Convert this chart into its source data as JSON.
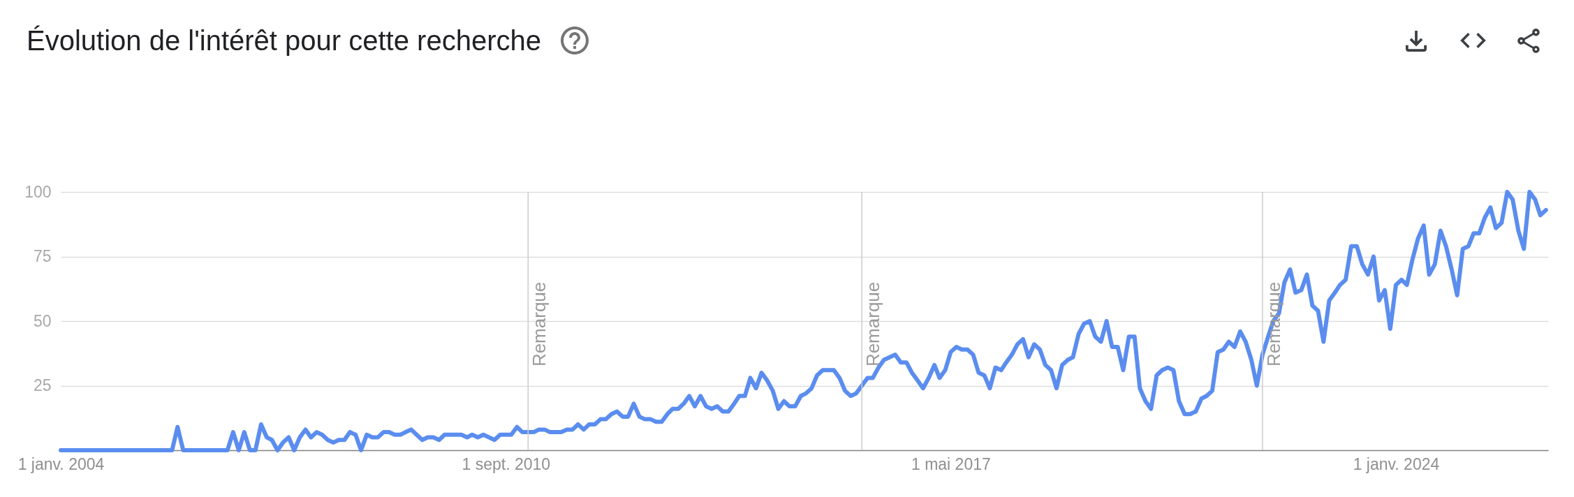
{
  "chart_data": {
    "type": "line",
    "title": "Évolution de l'intérêt pour cette recherche",
    "x": [
      "2004-01",
      "2004-02",
      "2004-03",
      "2004-04",
      "2004-05",
      "2004-06",
      "2004-07",
      "2004-08",
      "2004-09",
      "2004-10",
      "2004-11",
      "2004-12",
      "2005-01",
      "2005-02",
      "2005-03",
      "2005-04",
      "2005-05",
      "2005-06",
      "2005-07",
      "2005-08",
      "2005-09",
      "2005-10",
      "2005-11",
      "2005-12",
      "2006-01",
      "2006-02",
      "2006-03",
      "2006-04",
      "2006-05",
      "2006-06",
      "2006-07",
      "2006-08",
      "2006-09",
      "2006-10",
      "2006-11",
      "2006-12",
      "2007-01",
      "2007-02",
      "2007-03",
      "2007-04",
      "2007-05",
      "2007-06",
      "2007-07",
      "2007-08",
      "2007-09",
      "2007-10",
      "2007-11",
      "2007-12",
      "2008-01",
      "2008-02",
      "2008-03",
      "2008-04",
      "2008-05",
      "2008-06",
      "2008-07",
      "2008-08",
      "2008-09",
      "2008-10",
      "2008-11",
      "2008-12",
      "2009-01",
      "2009-02",
      "2009-03",
      "2009-04",
      "2009-05",
      "2009-06",
      "2009-07",
      "2009-08",
      "2009-09",
      "2009-10",
      "2009-11",
      "2009-12",
      "2010-01",
      "2010-02",
      "2010-03",
      "2010-04",
      "2010-05",
      "2010-06",
      "2010-07",
      "2010-08",
      "2010-09",
      "2010-10",
      "2010-11",
      "2010-12",
      "2011-01",
      "2011-02",
      "2011-03",
      "2011-04",
      "2011-05",
      "2011-06",
      "2011-07",
      "2011-08",
      "2011-09",
      "2011-10",
      "2011-11",
      "2011-12",
      "2012-01",
      "2012-02",
      "2012-03",
      "2012-04",
      "2012-05",
      "2012-06",
      "2012-07",
      "2012-08",
      "2012-09",
      "2012-10",
      "2012-11",
      "2012-12",
      "2013-01",
      "2013-02",
      "2013-03",
      "2013-04",
      "2013-05",
      "2013-06",
      "2013-07",
      "2013-08",
      "2013-09",
      "2013-10",
      "2013-11",
      "2013-12",
      "2014-01",
      "2014-02",
      "2014-03",
      "2014-04",
      "2014-05",
      "2014-06",
      "2014-07",
      "2014-08",
      "2014-09",
      "2014-10",
      "2014-11",
      "2014-12",
      "2015-01",
      "2015-02",
      "2015-03",
      "2015-04",
      "2015-05",
      "2015-06",
      "2015-07",
      "2015-08",
      "2015-09",
      "2015-10",
      "2015-11",
      "2015-12",
      "2016-01",
      "2016-02",
      "2016-03",
      "2016-04",
      "2016-05",
      "2016-06",
      "2016-07",
      "2016-08",
      "2016-09",
      "2016-10",
      "2016-11",
      "2016-12",
      "2017-01",
      "2017-02",
      "2017-03",
      "2017-04",
      "2017-05",
      "2017-06",
      "2017-07",
      "2017-08",
      "2017-09",
      "2017-10",
      "2017-11",
      "2017-12",
      "2018-01",
      "2018-02",
      "2018-03",
      "2018-04",
      "2018-05",
      "2018-06",
      "2018-07",
      "2018-08",
      "2018-09",
      "2018-10",
      "2018-11",
      "2018-12",
      "2019-01",
      "2019-02",
      "2019-03",
      "2019-04",
      "2019-05",
      "2019-06",
      "2019-07",
      "2019-08",
      "2019-09",
      "2019-10",
      "2019-11",
      "2019-12",
      "2020-01",
      "2020-02",
      "2020-03",
      "2020-04",
      "2020-05",
      "2020-06",
      "2020-07",
      "2020-08",
      "2020-09",
      "2020-10",
      "2020-11",
      "2020-12",
      "2021-01",
      "2021-02",
      "2021-03",
      "2021-04",
      "2021-05",
      "2021-06",
      "2021-07",
      "2021-08",
      "2021-09",
      "2021-10",
      "2021-11",
      "2021-12",
      "2022-01",
      "2022-02",
      "2022-03",
      "2022-04",
      "2022-05",
      "2022-06",
      "2022-07",
      "2022-08",
      "2022-09",
      "2022-10",
      "2022-11",
      "2022-12",
      "2023-01",
      "2023-02",
      "2023-03",
      "2023-04",
      "2023-05",
      "2023-06",
      "2023-07",
      "2023-08",
      "2023-09",
      "2023-10",
      "2023-11",
      "2023-12",
      "2024-01",
      "2024-02",
      "2024-03",
      "2024-04",
      "2024-05",
      "2024-06",
      "2024-07",
      "2024-08",
      "2024-09",
      "2024-10",
      "2024-11",
      "2024-12",
      "2025-01",
      "2025-02",
      "2025-03",
      "2025-04",
      "2025-05",
      "2025-06",
      "2025-07",
      "2025-08",
      "2025-09",
      "2025-10",
      "2025-11",
      "2025-12",
      "2026-01",
      "2026-02",
      "2026-03",
      "2026-04"
    ],
    "series": [
      {
        "color": "#5b8def",
        "values": [
          0,
          0,
          0,
          0,
          0,
          0,
          0,
          0,
          0,
          0,
          0,
          0,
          0,
          0,
          0,
          0,
          0,
          0,
          0,
          0,
          0,
          9,
          0,
          0,
          0,
          0,
          0,
          0,
          0,
          0,
          0,
          7,
          0,
          7,
          0,
          0,
          10,
          5,
          4,
          0,
          3,
          5,
          0,
          5,
          8,
          5,
          7,
          6,
          4,
          3,
          4,
          4,
          7,
          6,
          0,
          6,
          5,
          5,
          7,
          7,
          6,
          6,
          7,
          8,
          6,
          4,
          5,
          5,
          4,
          6,
          6,
          6,
          6,
          5,
          6,
          5,
          6,
          5,
          4,
          6,
          6,
          6,
          9,
          7,
          7,
          7,
          8,
          8,
          7,
          7,
          7,
          8,
          8,
          10,
          8,
          10,
          10,
          12,
          12,
          14,
          15,
          13,
          13,
          18,
          13,
          12,
          12,
          11,
          11,
          14,
          16,
          16,
          18,
          21,
          17,
          21,
          17,
          16,
          17,
          15,
          15,
          18,
          21,
          21,
          28,
          24,
          30,
          27,
          23,
          16,
          19,
          17,
          17,
          21,
          22,
          24,
          29,
          31,
          31,
          31,
          28,
          23,
          21,
          22,
          25,
          28,
          28,
          32,
          35,
          36,
          37,
          34,
          34,
          30,
          27,
          24,
          28,
          33,
          28,
          31,
          38,
          40,
          39,
          39,
          37,
          30,
          29,
          24,
          32,
          31,
          34,
          37,
          41,
          43,
          36,
          41,
          39,
          33,
          31,
          24,
          33,
          35,
          36,
          45,
          49,
          50,
          44,
          42,
          50,
          40,
          40,
          31,
          44,
          44,
          24,
          19,
          16,
          29,
          31,
          32,
          31,
          19,
          14,
          14,
          15,
          20,
          21,
          23,
          38,
          39,
          42,
          40,
          46,
          42,
          35,
          25,
          37,
          44,
          50,
          53,
          65,
          70,
          61,
          62,
          68,
          56,
          54,
          42,
          58,
          61,
          64,
          66,
          79,
          79,
          72,
          68,
          75,
          58,
          62,
          47,
          64,
          66,
          64,
          74,
          82,
          87,
          68,
          72,
          85,
          79,
          70,
          60,
          78,
          79,
          84,
          84,
          90,
          94,
          86,
          88,
          100,
          97,
          85,
          78,
          100,
          97,
          91,
          93
        ]
      }
    ],
    "xlim": [
      "2004-01",
      "2026-04-13"
    ],
    "xticks": [
      {
        "value": "2004-01-01",
        "label": "1 janv. 2004"
      },
      {
        "value": "2010-09-01",
        "label": "1 sept. 2010"
      },
      {
        "value": "2017-05-01",
        "label": "1 mai 2017"
      },
      {
        "value": "2024-01-01",
        "label": "1 janv. 2024"
      }
    ],
    "ylim": [
      0,
      100
    ],
    "yticks": [
      25,
      50,
      75,
      100
    ],
    "grid": "y",
    "ref_lines": [
      {
        "axis": "x",
        "value": "2011-01-01",
        "label": "Remarque",
        "color": "#cccccc"
      },
      {
        "axis": "x",
        "value": "2016-01-01",
        "label": "Remarque",
        "color": "#cccccc"
      },
      {
        "axis": "x",
        "value": "2022-01-01",
        "label": "Remarque",
        "color": "#cccccc"
      }
    ]
  }
}
